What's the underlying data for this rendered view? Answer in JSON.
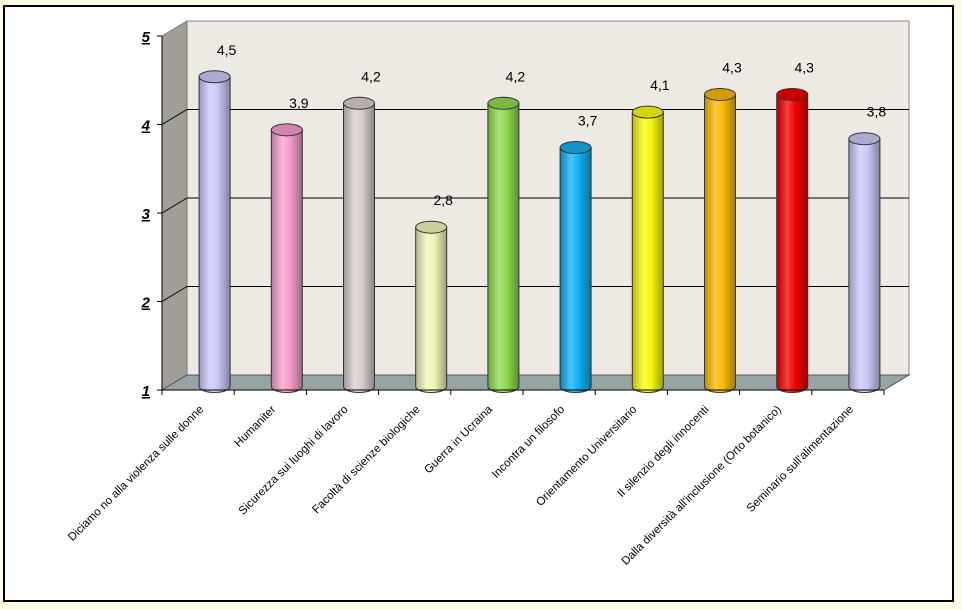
{
  "chart_data": {
    "type": "bar",
    "style": "3d-cylinder",
    "title": "",
    "xlabel": "",
    "ylabel": "",
    "ylim": [
      1,
      5
    ],
    "yticks": [
      "1",
      "2",
      "3",
      "4",
      "5"
    ],
    "grid": true,
    "legend": null,
    "categories": [
      "Diciamo no alla violenza sulle donne",
      "Humaniter",
      "Sicurezza sui luoghi di lavoro",
      "Facoltà di scienze biologiche",
      "Guerra in Ucraina",
      "Incontra un filosofo",
      "Orientamento Universitario",
      "Il silenzio degli innocenti",
      "Dalla diversità all'inclusione (Orto botanico)",
      "Seminario sull'alimentazione"
    ],
    "values": [
      4.5,
      3.9,
      4.2,
      2.8,
      4.2,
      3.7,
      4.1,
      4.3,
      4.3,
      3.8
    ],
    "value_labels": [
      "4,5",
      "3,9",
      "4,2",
      "2,8",
      "4,2",
      "3,7",
      "4,1",
      "4,3",
      "4,3",
      "3,8"
    ],
    "colors": [
      "#C8C8F8",
      "#F89CD0",
      "#D8CCCC",
      "#F0F4B8",
      "#90D850",
      "#10B0F0",
      "#F8F810",
      "#F8B800",
      "#F00000",
      "#C8C8F8"
    ]
  },
  "theme": {
    "page_bg": "#FFFCE6",
    "panel_bg": "#FFFFFF",
    "back_wall": "#ECEAE2",
    "side_wall": "#A09E96",
    "floor": "#96A4A6",
    "gridline": "#000000"
  }
}
